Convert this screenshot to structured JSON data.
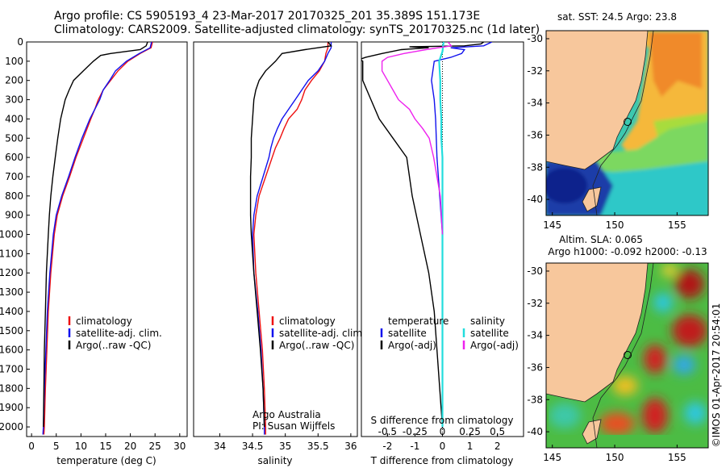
{
  "header": {
    "line1": "Argo profile: CS 5905193_4 23-Mar-2017 20170325_201 35.389S 151.173E",
    "line2": "Climatology: CARS2009. Satellite-adjusted climatology: synTS_20170325.nc (1d later)"
  },
  "colors": {
    "climatology": "#ee1111",
    "satellite_clim": "#1111ee",
    "argo": "#000000",
    "sal_satellite": "#22dddd",
    "sal_argo": "#ee22ee",
    "land": "#f7c79c"
  },
  "chart_data": [
    {
      "type": "line",
      "name": "temperature",
      "xlabel": "temperature (deg C)",
      "ylabel": "",
      "xlim": [
        -1,
        31.5
      ],
      "ylim": [
        0,
        2050
      ],
      "xticks": [
        "0",
        "5",
        "10",
        "15",
        "20",
        "25",
        "30"
      ],
      "xtick_values": [
        0,
        5,
        10,
        15,
        20,
        25,
        30
      ],
      "yticks": [
        "0",
        "100",
        "200",
        "300",
        "400",
        "500",
        "600",
        "700",
        "800",
        "900",
        "1000",
        "1100",
        "1200",
        "1300",
        "1400",
        "1500",
        "1600",
        "1700",
        "1800",
        "1900",
        "2000"
      ],
      "ytick_values": [
        0,
        100,
        200,
        300,
        400,
        500,
        600,
        700,
        800,
        900,
        1000,
        1100,
        1200,
        1300,
        1400,
        1500,
        1600,
        1700,
        1800,
        1900,
        2000
      ],
      "legend": [
        "climatology",
        "satellite-adj. clim.",
        "Argo(..raw -QC)"
      ],
      "legend_position": "lower-left",
      "series": [
        {
          "key": "climatology",
          "depth": [
            0,
            30,
            60,
            100,
            150,
            200,
            250,
            300,
            350,
            400,
            500,
            600,
            700,
            800,
            900,
            1000,
            1200,
            1400,
            1600,
            1800,
            2000,
            2040
          ],
          "values": [
            24.5,
            24.2,
            22,
            19.5,
            17.5,
            16,
            14.5,
            13.5,
            12.8,
            12,
            10.5,
            9,
            7.7,
            6.3,
            5.2,
            4.6,
            3.9,
            3.4,
            3.1,
            2.8,
            2.6,
            2.5
          ]
        },
        {
          "key": "satellite_clim",
          "depth": [
            0,
            30,
            60,
            100,
            150,
            200,
            250,
            300,
            350,
            400,
            500,
            600,
            700,
            800,
            900,
            1000,
            1200,
            1400,
            1600,
            1800,
            2000,
            2040
          ],
          "values": [
            24.3,
            24,
            21.8,
            19.2,
            17,
            15.8,
            14.5,
            13.8,
            12.8,
            11.8,
            10.2,
            8.8,
            7.5,
            6.1,
            5,
            4.4,
            3.7,
            3.2,
            2.9,
            2.6,
            2.4,
            2.3
          ]
        },
        {
          "key": "argo",
          "depth": [
            0,
            20,
            40,
            60,
            70,
            100,
            150,
            200,
            250,
            300,
            400,
            500,
            600,
            700,
            800,
            900,
            1000,
            1200,
            1400,
            1600,
            1800,
            2000
          ],
          "values": [
            23.5,
            23.2,
            22,
            16,
            14,
            12.5,
            10.5,
            8.5,
            7.6,
            6.8,
            5.9,
            5.3,
            4.8,
            4.3,
            3.9,
            3.6,
            3.4,
            3.0,
            2.8,
            2.6,
            2.5,
            2.4
          ]
        }
      ]
    },
    {
      "type": "line",
      "name": "salinity",
      "xlabel": "salinity",
      "ylabel": "",
      "xlim": [
        33.6,
        36.1
      ],
      "ylim": [
        0,
        2050
      ],
      "xticks": [
        "34",
        "34.5",
        "35",
        "35.5",
        "36"
      ],
      "xtick_values": [
        34,
        34.5,
        35,
        35.5,
        36
      ],
      "legend": [
        "climatology",
        "satellite-adj. clim.",
        "Argo(..raw -QC)"
      ],
      "legend_position": "lower-center",
      "annotation": [
        "Argo Australia",
        "PI: Susan Wijffels"
      ],
      "series": [
        {
          "key": "climatology",
          "depth": [
            0,
            30,
            60,
            100,
            150,
            200,
            250,
            300,
            350,
            400,
            450,
            500,
            550,
            600,
            700,
            800,
            900,
            1000,
            1200,
            1400,
            1600,
            1800,
            2000,
            2040
          ],
          "values": [
            35.65,
            35.65,
            35.62,
            35.6,
            35.52,
            35.4,
            35.3,
            35.25,
            35.18,
            35.05,
            34.98,
            34.92,
            34.85,
            34.8,
            34.7,
            34.6,
            34.55,
            34.52,
            34.55,
            34.6,
            34.65,
            34.68,
            34.7,
            34.7
          ]
        },
        {
          "key": "satellite_clim",
          "depth": [
            0,
            30,
            60,
            100,
            150,
            200,
            250,
            300,
            350,
            400,
            450,
            500,
            550,
            600,
            700,
            800,
            900,
            1000,
            1200,
            1400,
            1600,
            1800,
            2000,
            2040
          ],
          "values": [
            35.7,
            35.7,
            35.65,
            35.6,
            35.5,
            35.35,
            35.25,
            35.15,
            35.05,
            34.95,
            34.88,
            34.82,
            34.78,
            34.75,
            34.66,
            34.57,
            34.52,
            34.5,
            34.52,
            34.58,
            34.63,
            34.66,
            34.68,
            34.68
          ]
        },
        {
          "key": "argo",
          "depth": [
            0,
            20,
            40,
            60,
            80,
            100,
            150,
            200,
            250,
            300,
            400,
            500,
            600,
            700,
            800,
            900,
            1000,
            1200,
            1400,
            1600,
            1800,
            2000
          ],
          "values": [
            35.65,
            35.7,
            35.3,
            34.95,
            34.9,
            34.85,
            34.7,
            34.6,
            34.55,
            34.52,
            34.5,
            34.48,
            34.48,
            34.47,
            34.47,
            34.47,
            34.48,
            34.52,
            34.57,
            34.62,
            34.66,
            34.68
          ]
        }
      ]
    },
    {
      "type": "line",
      "name": "differences",
      "xlabel": "T difference from climatology",
      "xlabel_top": "S difference from climatology",
      "xlim": [
        -2.95,
        2.95
      ],
      "ylim": [
        0,
        2050
      ],
      "xticks": [
        "-2",
        "-1",
        "0",
        "1",
        "2"
      ],
      "xtick_values": [
        -2,
        -1,
        0,
        1,
        2
      ],
      "sticks": [
        "-0.5",
        "-0.25",
        "0",
        "0.25",
        "0.5"
      ],
      "stick_values": [
        -0.5,
        -0.25,
        0,
        0.25,
        0.5
      ],
      "legend_temperature": [
        "temperature",
        "satellite",
        "Argo(-adj)"
      ],
      "legend_salinity": [
        "salinity",
        "satellite",
        "Argo(-adj)"
      ],
      "series": [
        {
          "key": "t_satellite",
          "depth": [
            0,
            20,
            30,
            40,
            60,
            80,
            100,
            150,
            200,
            300,
            400,
            600,
            800,
            1000,
            1300,
            1600,
            2000
          ],
          "values": [
            1.8,
            1.5,
            0.3,
            0.8,
            0.7,
            0.3,
            -0.3,
            -0.35,
            -0.4,
            -0.3,
            -0.25,
            -0.2,
            -0.1,
            0,
            0,
            0,
            0
          ]
        },
        {
          "key": "t_argo",
          "depth": [
            0,
            10,
            20,
            25,
            30,
            40,
            60,
            80,
            90,
            100,
            150,
            200,
            300,
            400,
            500,
            600,
            800,
            1000,
            1200,
            1400,
            1600,
            1800,
            2000
          ],
          "values": [
            1.5,
            1.4,
            0.8,
            -1.2,
            -0.5,
            -1.5,
            -2.2,
            -2.8,
            -3,
            -2.9,
            -2.9,
            -2.9,
            -2.6,
            -2.3,
            -1.8,
            -1.3,
            -1.1,
            -0.8,
            -0.5,
            -0.3,
            -0.2,
            -0.1,
            0
          ]
        },
        {
          "key": "s_satellite",
          "depth": [
            0,
            50,
            100,
            200,
            300,
            400,
            500,
            600,
            700,
            800,
            1000,
            1200,
            1600,
            2000
          ],
          "values": [
            0.01,
            0,
            -0.03,
            -0.02,
            -0.02,
            -0.01,
            -0.01,
            0,
            0,
            0,
            0,
            0,
            0,
            0
          ]
        },
        {
          "key": "s_argo",
          "depth": [
            0,
            20,
            40,
            60,
            80,
            100,
            150,
            200,
            250,
            300,
            350,
            400,
            450,
            500,
            600,
            700,
            800,
            900,
            1000
          ],
          "values": [
            0.05,
            0.08,
            -0.15,
            -0.35,
            -0.5,
            -0.55,
            -0.55,
            -0.5,
            -0.45,
            -0.4,
            -0.3,
            -0.25,
            -0.18,
            -0.12,
            -0.08,
            -0.05,
            -0.02,
            -0.01,
            0
          ]
        }
      ]
    },
    {
      "type": "heatmap",
      "name": "sst_map",
      "title": "sat. SST: 24.5 Argo: 23.8",
      "xlim": [
        144.5,
        157.5
      ],
      "ylim": [
        -41,
        -29.5
      ],
      "xticks": [
        "145",
        "150",
        "155"
      ],
      "xtick_values": [
        145,
        150,
        155
      ],
      "yticks": [
        "-30",
        "-32",
        "-34",
        "-36",
        "-38",
        "-40"
      ],
      "ytick_values": [
        -30,
        -32,
        -34,
        -36,
        -38,
        -40
      ],
      "argo_position": [
        151.173,
        -35.389
      ]
    },
    {
      "type": "heatmap",
      "name": "sla_map",
      "title_line1": "Altim. SLA: 0.065",
      "title_line2": "Argo h1000: -0.092 h2000: -0.13",
      "xlim": [
        144.5,
        157.5
      ],
      "ylim": [
        -41,
        -29.5
      ],
      "xticks": [
        "145",
        "150",
        "155"
      ],
      "xtick_values": [
        145,
        150,
        155
      ],
      "yticks": [
        "-30",
        "-32",
        "-34",
        "-36",
        "-38",
        "-40"
      ],
      "ytick_values": [
        -30,
        -32,
        -34,
        -36,
        -38,
        -40
      ],
      "argo_position": [
        151.173,
        -35.389
      ]
    }
  ],
  "credit": "©IMOS 01-Apr-2017 20:54:01"
}
